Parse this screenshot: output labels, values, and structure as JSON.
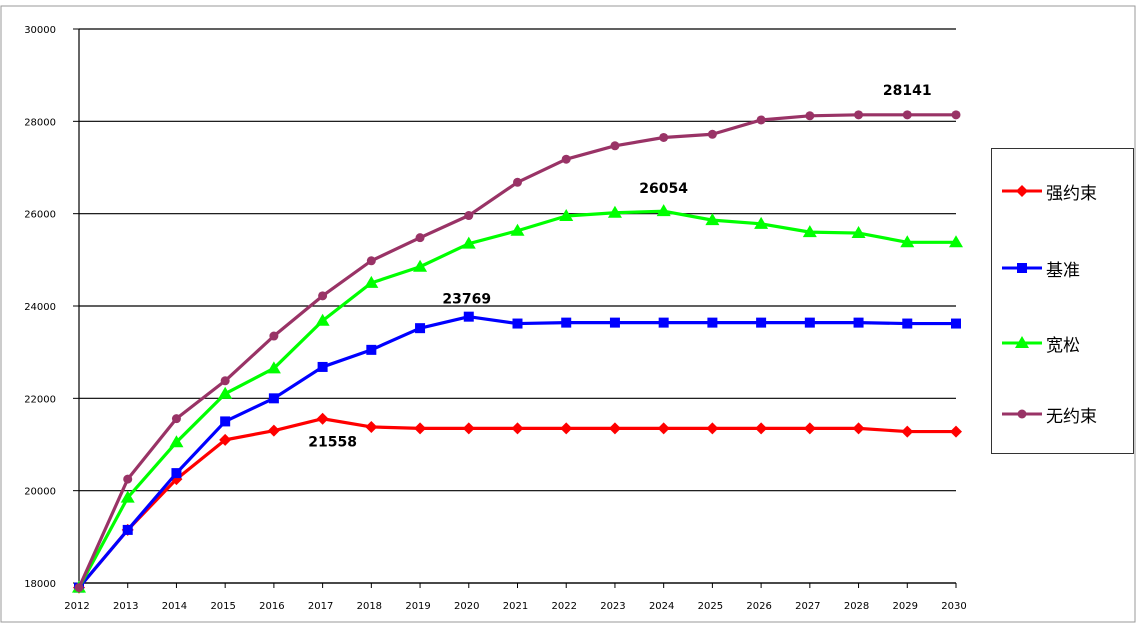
{
  "chart_data": {
    "type": "line",
    "title": "",
    "xlabel": "",
    "ylabel": "",
    "categories": [
      "2012",
      "2013",
      "2014",
      "2015",
      "2016",
      "2017",
      "2018",
      "2019",
      "2020",
      "2021",
      "2022",
      "2023",
      "2024",
      "2025",
      "2026",
      "2027",
      "2028",
      "2029",
      "2030"
    ],
    "yticks": [
      "18000",
      "20000",
      "22000",
      "24000",
      "26000",
      "28000",
      "30000"
    ],
    "ylim": [
      18000,
      30000
    ],
    "grid": true,
    "legend_position": "right",
    "series": [
      {
        "name": "强约束",
        "color": "#ff0000",
        "marker": "diamond",
        "values": [
          17900,
          19150,
          20250,
          21100,
          21300,
          21558,
          21380,
          21350,
          21350,
          21350,
          21350,
          21350,
          21350,
          21350,
          21350,
          21350,
          21350,
          21280,
          21280
        ]
      },
      {
        "name": "基准",
        "color": "#0000ff",
        "marker": "square",
        "values": [
          17900,
          19150,
          20380,
          21500,
          22000,
          22680,
          23050,
          23520,
          23769,
          23620,
          23640,
          23640,
          23640,
          23640,
          23640,
          23640,
          23640,
          23620,
          23620
        ]
      },
      {
        "name": "宽松",
        "color": "#00ff00",
        "marker": "triangle",
        "values": [
          17900,
          19850,
          21050,
          22100,
          22650,
          23680,
          24500,
          24850,
          25350,
          25630,
          25950,
          26020,
          26054,
          25860,
          25780,
          25600,
          25580,
          25380,
          25380
        ]
      },
      {
        "name": "无约束",
        "color": "#993366",
        "marker": "circle",
        "values": [
          17900,
          20250,
          21560,
          22380,
          23350,
          24220,
          24980,
          25480,
          25960,
          26680,
          27180,
          27470,
          27650,
          27720,
          28030,
          28120,
          28141,
          28141,
          28141
        ]
      }
    ],
    "annotations": [
      {
        "text": "21558",
        "x": "2017",
        "y": 21558
      },
      {
        "text": "23769",
        "x": "2020",
        "y": 23769
      },
      {
        "text": "26054",
        "x": "2024",
        "y": 26054
      },
      {
        "text": "28141",
        "x": "2029",
        "y": 28141
      }
    ]
  }
}
